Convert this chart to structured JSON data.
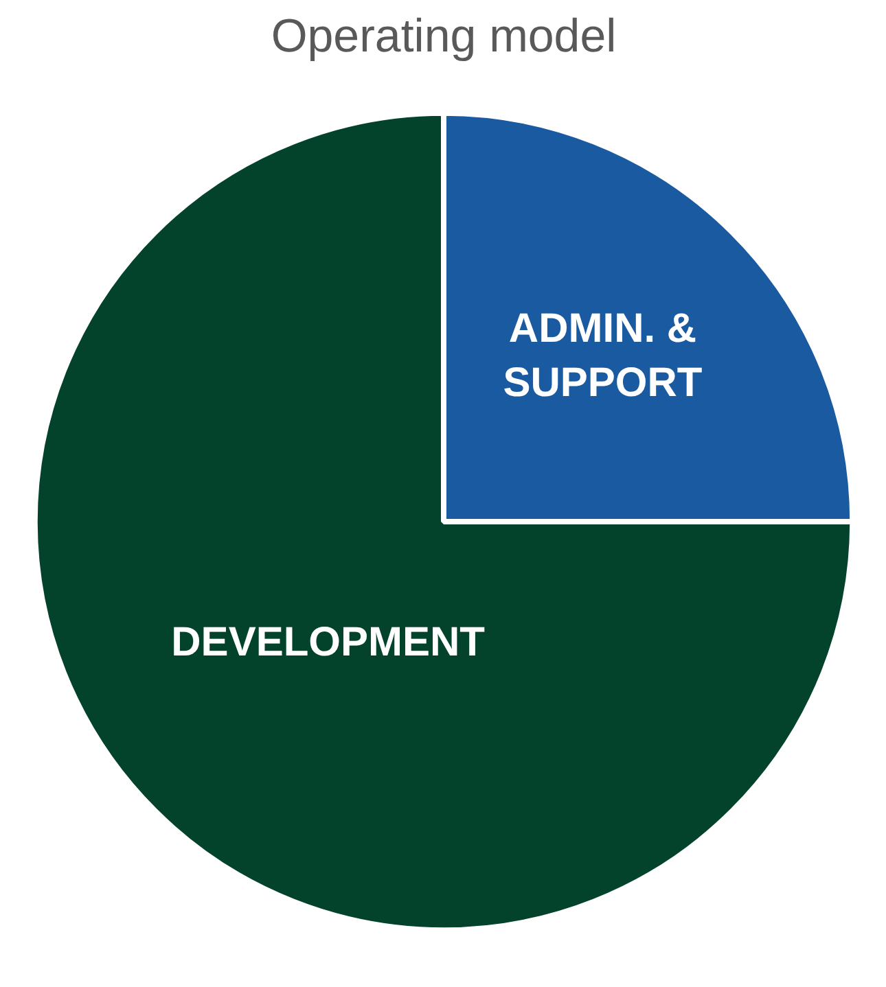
{
  "chart_data": {
    "type": "pie",
    "title": "Operating model",
    "categories": [
      "ADMIN. & SUPPORT",
      "DEVELOPMENT"
    ],
    "values": [
      25,
      75
    ],
    "colors": [
      "#1a5aa0",
      "#03432b"
    ]
  }
}
